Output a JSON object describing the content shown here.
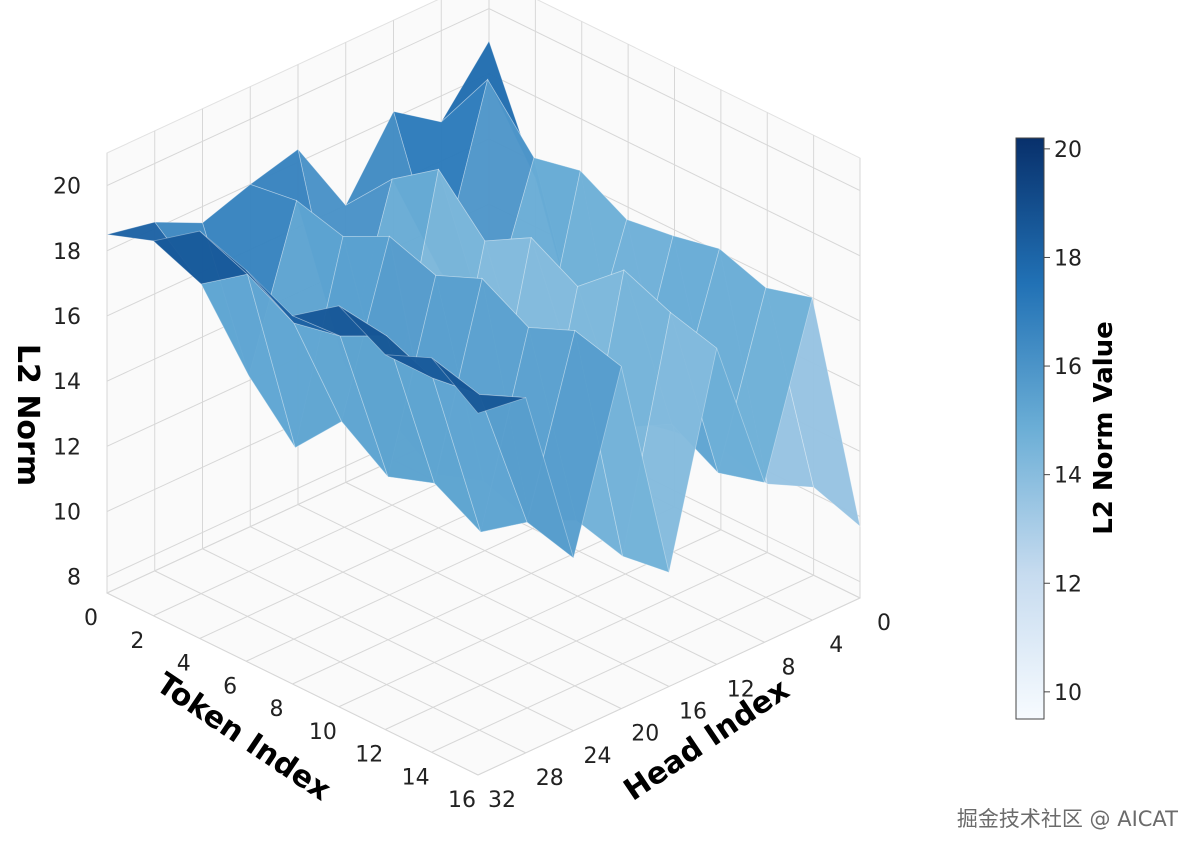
{
  "chart_data": {
    "type": "surface3d",
    "title": "",
    "xlabel": "Token Index",
    "ylabel": "Head Index",
    "zlabel": "L2 Norm",
    "x_ticks": [
      "0",
      "2",
      "4",
      "6",
      "8",
      "10",
      "12",
      "14",
      "16"
    ],
    "y_ticks": [
      "0",
      "4",
      "8",
      "12",
      "16",
      "20",
      "24",
      "28",
      "32"
    ],
    "z_ticks": [
      "8",
      "10",
      "12",
      "14",
      "16",
      "18",
      "20"
    ],
    "zlim": [
      7.5,
      21
    ],
    "colorbar": {
      "label": "L2 Norm Value",
      "range": [
        9.5,
        20.2
      ],
      "ticks": [
        "10",
        "12",
        "14",
        "16",
        "18",
        "20"
      ],
      "colors": [
        "#f7fbff",
        "#c6dbef",
        "#6baed6",
        "#2171b5",
        "#08306b"
      ]
    },
    "grid": true,
    "token_index": [
      0,
      2,
      4,
      6,
      8,
      10,
      12,
      14,
      16
    ],
    "head_index": [
      0,
      4,
      8,
      12,
      16,
      20,
      24,
      28,
      32
    ],
    "l2_norm": [
      [
        19.0,
        17.2,
        18.2,
        16.0,
        18.4,
        18.0,
        17.5,
        18.2,
        18.5
      ],
      [
        15.5,
        19.2,
        14.0,
        17.5,
        12.5,
        18.2,
        13.5,
        17.0,
        19.0
      ],
      [
        11.0,
        17.5,
        13.0,
        18.5,
        11.5,
        17.8,
        12.0,
        18.0,
        20.0
      ],
      [
        9.5,
        17.8,
        11.5,
        17.0,
        10.5,
        18.5,
        13.5,
        17.2,
        19.5
      ],
      [
        9.8,
        17.0,
        12.5,
        17.8,
        11.0,
        18.0,
        12.5,
        17.5,
        18.8
      ],
      [
        10.0,
        17.2,
        12.0,
        17.0,
        10.5,
        18.6,
        13.0,
        18.2,
        19.8
      ],
      [
        9.6,
        17.5,
        12.8,
        18.2,
        11.2,
        17.8,
        12.2,
        17.6,
        19.0
      ],
      [
        10.2,
        17.0,
        12.0,
        17.6,
        10.8,
        18.4,
        13.2,
        17.8,
        19.6
      ],
      [
        9.7,
        17.4,
        12.4,
        17.2,
        11.0,
        18.0,
        12.8,
        18.4,
        18.6
      ]
    ]
  },
  "watermark": "掘金技术社区 @ AICAT"
}
